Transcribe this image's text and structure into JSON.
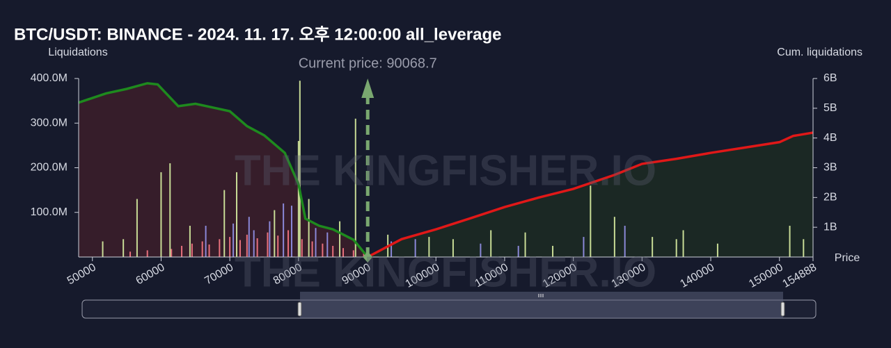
{
  "chart_data": {
    "type": "bar",
    "title": "BTC/USDT: BINANCE - 2024. 11. 17. 오후 12:00:00 all_leverage",
    "y_label": "Liquidations",
    "y2_label": "Cum. liquidations",
    "x_label": "Price",
    "watermark": "THE KINGFISHER.IO",
    "current_price": {
      "value": 90068.7,
      "label": "Current price: 90068.7",
      "color": "#7aa870"
    },
    "xlim": [
      48000,
      154888
    ],
    "xticks": [
      50000,
      60000,
      70000,
      80000,
      90000,
      100000,
      110000,
      120000,
      130000,
      140000,
      150000,
      154888
    ],
    "ylim": [
      0,
      400000000
    ],
    "yticks": [
      {
        "value": 100000000,
        "label": "100.0M"
      },
      {
        "value": 200000000,
        "label": "200.0M"
      },
      {
        "value": 300000000,
        "label": "300.0M"
      },
      {
        "value": 400000000,
        "label": "400.0M"
      }
    ],
    "y2lim": [
      0,
      6000000000
    ],
    "y2ticks": [
      {
        "value": 1000000000,
        "label": "1B"
      },
      {
        "value": 2000000000,
        "label": "2B"
      },
      {
        "value": 3000000000,
        "label": "3B"
      },
      {
        "value": 4000000000,
        "label": "4B"
      },
      {
        "value": 5000000000,
        "label": "5B"
      },
      {
        "value": 6000000000,
        "label": "6B"
      }
    ],
    "series": [
      {
        "type": "bar",
        "color": "#e8707c",
        "x": [
          55500,
          58000,
          61500,
          63000,
          64500,
          66000,
          67000,
          68500,
          70000,
          71500,
          72500,
          74000,
          75500,
          77000,
          78500,
          80500,
          82000,
          83500,
          85000,
          86500,
          88000,
          89500
        ],
        "values": [
          12000000,
          15000000,
          18000000,
          25000000,
          30000000,
          35000000,
          28000000,
          40000000,
          45000000,
          38000000,
          50000000,
          42000000,
          55000000,
          48000000,
          60000000,
          40000000,
          35000000,
          30000000,
          25000000,
          20000000,
          15000000,
          10000000
        ]
      },
      {
        "type": "bar",
        "color": "#8a88d8",
        "x": [
          66500,
          70500,
          72800,
          73500,
          75800,
          77800,
          79000,
          82500,
          84200,
          93500,
          97000,
          106500,
          112000,
          121500,
          127500
        ],
        "values": [
          70000000,
          75000000,
          90000000,
          60000000,
          80000000,
          120000000,
          115000000,
          65000000,
          55000000,
          35000000,
          40000000,
          30000000,
          25000000,
          45000000,
          70000000
        ]
      },
      {
        "type": "bar",
        "color": "#c8dc96",
        "x": [
          51500,
          54500,
          56500,
          60000,
          61300,
          64200,
          69200,
          71000,
          76500,
          80000,
          80200,
          81500,
          86000,
          88300,
          93000,
          99000,
          102500,
          108000,
          113000,
          117000,
          122500,
          126000,
          131500,
          135000,
          136000,
          141000,
          151500,
          153500
        ],
        "values": [
          35000000,
          40000000,
          130000000,
          190000000,
          210000000,
          70000000,
          150000000,
          190000000,
          105000000,
          260000000,
          395000000,
          130000000,
          80000000,
          310000000,
          50000000,
          45000000,
          40000000,
          60000000,
          55000000,
          25000000,
          160000000,
          90000000,
          45000000,
          40000000,
          60000000,
          30000000,
          70000000,
          40000000
        ]
      },
      {
        "type": "line",
        "axis": "y2",
        "color": "#1e8a1e",
        "fill": "#3a1e2a",
        "x": [
          48000,
          52000,
          55000,
          58000,
          59500,
          62500,
          65000,
          68000,
          70000,
          72500,
          75000,
          78000,
          80000,
          81000,
          83000,
          85000,
          88000,
          90068.7
        ],
        "values": [
          5190000000,
          5500000000,
          5650000000,
          5840000000,
          5800000000,
          5070000000,
          5150000000,
          5000000000,
          4900000000,
          4400000000,
          4090000000,
          3500000000,
          2450000000,
          1290000000,
          1050000000,
          930000000,
          580000000,
          0
        ]
      },
      {
        "type": "line",
        "axis": "y2",
        "color": "#e01818",
        "fill": "#1c2a24",
        "x": [
          90068.7,
          95000,
          100000,
          105000,
          110000,
          115000,
          120000,
          126000,
          130000,
          135000,
          140000,
          145000,
          150000,
          152000,
          154888
        ],
        "values": [
          0,
          600000000,
          930000000,
          1300000000,
          1680000000,
          2000000000,
          2290000000,
          2760000000,
          3130000000,
          3300000000,
          3500000000,
          3680000000,
          3860000000,
          4070000000,
          4180000000
        ]
      }
    ]
  }
}
